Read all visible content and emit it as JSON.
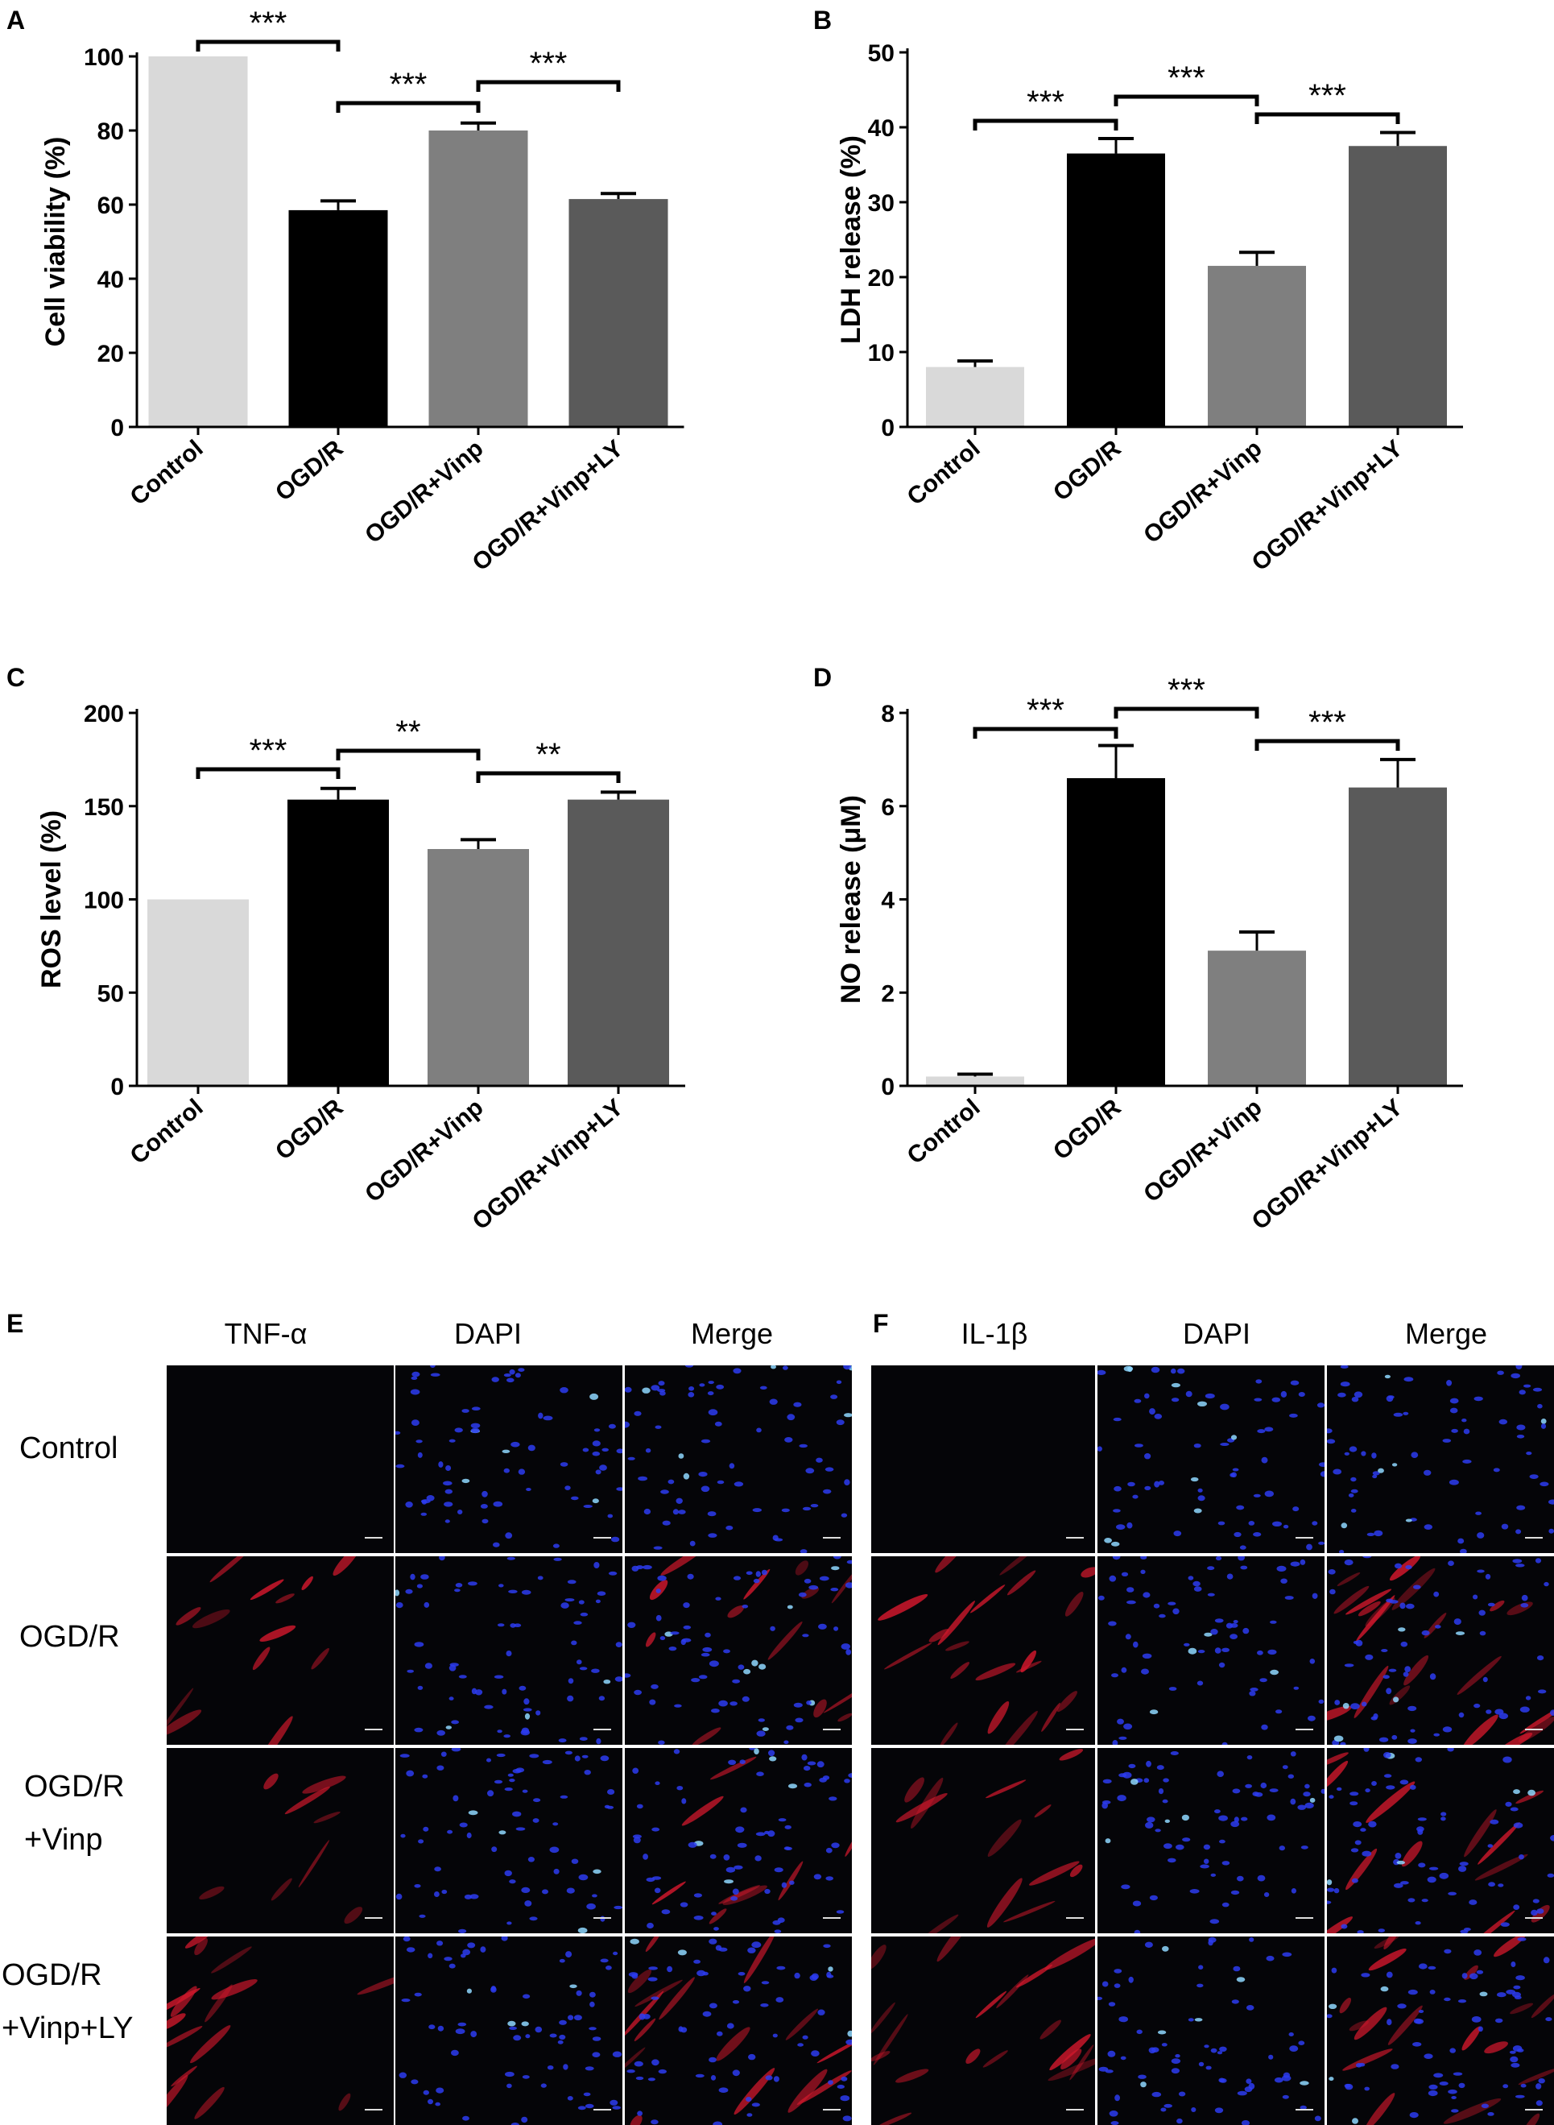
{
  "chart_data": [
    {
      "panel": "A",
      "type": "bar",
      "categories": [
        "Control",
        "OGD/R",
        "OGD/R+Vinp",
        "OGD/R+Vinp+LY"
      ],
      "values": [
        100,
        58.5,
        80,
        61.5
      ],
      "errors": [
        0,
        2.5,
        2,
        1.5
      ],
      "colors": [
        "#d9d9d9",
        "#000000",
        "#7f7f7f",
        "#5a5a5a"
      ],
      "ylabel": "Cell viability (%)",
      "ylim": [
        0,
        100
      ],
      "yticks": [
        0,
        20,
        40,
        60,
        80,
        100
      ],
      "significance": [
        {
          "from": 0,
          "to": 1,
          "label": "***"
        },
        {
          "from": 1,
          "to": 2,
          "label": "***"
        },
        {
          "from": 2,
          "to": 3,
          "label": "***"
        }
      ]
    },
    {
      "panel": "B",
      "type": "bar",
      "categories": [
        "Control",
        "OGD/R",
        "OGD/R+Vinp",
        "OGD/R+Vinp+LY"
      ],
      "values": [
        8,
        36.5,
        21.5,
        37.5
      ],
      "errors": [
        0.8,
        2,
        1.8,
        1.8
      ],
      "colors": [
        "#d9d9d9",
        "#000000",
        "#7f7f7f",
        "#5a5a5a"
      ],
      "ylabel": "LDH release (%)",
      "ylim": [
        0,
        50
      ],
      "yticks": [
        0,
        10,
        20,
        30,
        40,
        50
      ],
      "significance": [
        {
          "from": 0,
          "to": 1,
          "label": "***"
        },
        {
          "from": 1,
          "to": 2,
          "label": "***"
        },
        {
          "from": 2,
          "to": 3,
          "label": "***"
        }
      ]
    },
    {
      "panel": "C",
      "type": "bar",
      "categories": [
        "Control",
        "OGD/R",
        "OGD/R+Vinp",
        "OGD/R+Vinp+LY"
      ],
      "values": [
        100,
        153.5,
        127,
        153.5
      ],
      "errors": [
        0,
        6,
        5,
        4
      ],
      "colors": [
        "#d9d9d9",
        "#000000",
        "#7f7f7f",
        "#5a5a5a"
      ],
      "ylabel": "ROS level (%)",
      "ylim": [
        0,
        200
      ],
      "yticks": [
        0,
        50,
        100,
        150,
        200
      ],
      "significance": [
        {
          "from": 0,
          "to": 1,
          "label": "***"
        },
        {
          "from": 1,
          "to": 2,
          "label": "**"
        },
        {
          "from": 2,
          "to": 3,
          "label": "**"
        }
      ]
    },
    {
      "panel": "D",
      "type": "bar",
      "categories": [
        "Control",
        "OGD/R",
        "OGD/R+Vinp",
        "OGD/R+Vinp+LY"
      ],
      "values": [
        0.2,
        6.6,
        2.9,
        6.4
      ],
      "errors": [
        0.05,
        0.7,
        0.4,
        0.6
      ],
      "colors": [
        "#d9d9d9",
        "#000000",
        "#7f7f7f",
        "#5a5a5a"
      ],
      "ylabel": "NO release (μM)",
      "ylim": [
        0,
        8
      ],
      "yticks": [
        0,
        2,
        4,
        6,
        8
      ],
      "significance": [
        {
          "from": 0,
          "to": 1,
          "label": "***"
        },
        {
          "from": 1,
          "to": 2,
          "label": "***"
        },
        {
          "from": 2,
          "to": 3,
          "label": "***"
        }
      ]
    }
  ],
  "micrographs": [
    {
      "panel": "E",
      "columns": [
        "TNF-α",
        "DAPI",
        "Merge"
      ],
      "rows": [
        {
          "lines": [
            "Control"
          ]
        },
        {
          "lines": [
            "OGD/R"
          ]
        },
        {
          "lines": [
            "OGD/R",
            "+Vinp"
          ]
        },
        {
          "lines": [
            "OGD/R",
            "+Vinp+LY"
          ]
        }
      ]
    },
    {
      "panel": "F",
      "columns": [
        "IL-1β",
        "DAPI",
        "Merge"
      ],
      "rows": []
    }
  ],
  "colors": {
    "marker_red": "#d0182c",
    "nucleus_blue": "#2d3cf0",
    "tile_background": "#050508"
  }
}
